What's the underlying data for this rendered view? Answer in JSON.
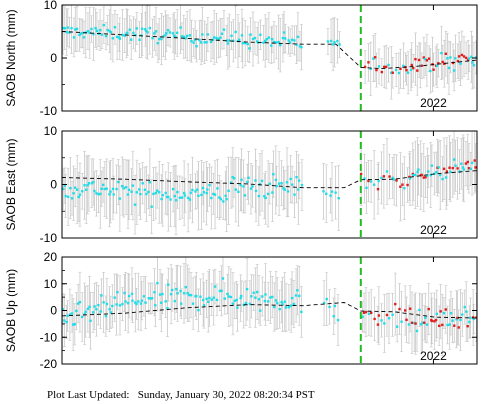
{
  "footer": {
    "label": "Plot Last Updated:",
    "timestamp": "Sunday, January 30, 2022 08:20:34 PST"
  },
  "colors": {
    "early_points": "#22dde6",
    "recent_points": "#e02020",
    "error_bars": "#c8c8c8",
    "model_line": "#000000",
    "event_line": "#22bb22"
  },
  "chart_data": [
    {
      "type": "scatter",
      "ylabel": "SAOB North (mm)",
      "ylim": [
        -10,
        10
      ],
      "yticks": [
        -10,
        0,
        10
      ],
      "x_tick_labels": [
        "2022"
      ],
      "grid": false,
      "error_bar_halfwidth": 4,
      "event_line_x": 0.72,
      "model_line": [
        [
          0.0,
          5.0
        ],
        [
          0.12,
          4.5
        ],
        [
          0.28,
          3.8
        ],
        [
          0.45,
          3.0
        ],
        [
          0.58,
          2.6
        ],
        [
          0.66,
          2.6
        ],
        [
          0.72,
          -1.8
        ],
        [
          0.77,
          -2.0
        ],
        [
          0.85,
          -1.6
        ],
        [
          0.95,
          -0.8
        ],
        [
          1.0,
          -0.4
        ]
      ],
      "segments": [
        {
          "x_range": [
            0.0,
            0.13
          ],
          "center": [
            5.0,
            4.7
          ],
          "spread": 0.9,
          "count": 30,
          "color": "early"
        },
        {
          "x_range": [
            0.13,
            0.3
          ],
          "center": [
            4.7,
            4.1
          ],
          "spread": 1.0,
          "count": 38,
          "color": "early"
        },
        {
          "x_range": [
            0.3,
            0.58
          ],
          "center": [
            4.1,
            2.8
          ],
          "spread": 1.1,
          "count": 60,
          "color": "early"
        },
        {
          "x_range": [
            0.64,
            0.67
          ],
          "center": [
            3.0,
            2.8
          ],
          "spread": 0.5,
          "count": 6,
          "color": "early"
        },
        {
          "x_range": [
            0.73,
            0.83
          ],
          "center": [
            -1.6,
            -1.7
          ],
          "spread": 1.2,
          "count": 18,
          "color": "recent"
        },
        {
          "x_range": [
            0.83,
            1.0
          ],
          "center": [
            -1.6,
            -0.3
          ],
          "spread": 1.2,
          "count": 42,
          "color": "recent"
        }
      ]
    },
    {
      "type": "scatter",
      "ylabel": "SAOB East (mm)",
      "ylim": [
        -10,
        10
      ],
      "yticks": [
        -10,
        0,
        10
      ],
      "x_tick_labels": [
        "2022"
      ],
      "grid": false,
      "error_bar_halfwidth": 5,
      "event_line_x": 0.72,
      "model_line": [
        [
          0.0,
          1.3
        ],
        [
          0.15,
          1.0
        ],
        [
          0.3,
          0.5
        ],
        [
          0.45,
          0.1
        ],
        [
          0.58,
          -0.6
        ],
        [
          0.68,
          -0.6
        ],
        [
          0.72,
          0.9
        ],
        [
          0.8,
          1.0
        ],
        [
          0.9,
          2.0
        ],
        [
          1.0,
          2.6
        ]
      ],
      "segments": [
        {
          "x_range": [
            0.0,
            0.12
          ],
          "center": [
            -0.5,
            -1.0
          ],
          "spread": 1.4,
          "count": 28,
          "color": "early"
        },
        {
          "x_range": [
            0.12,
            0.4
          ],
          "center": [
            -1.5,
            -1.8
          ],
          "spread": 1.4,
          "count": 62,
          "color": "early"
        },
        {
          "x_range": [
            0.4,
            0.58
          ],
          "center": [
            -0.5,
            -0.4
          ],
          "spread": 1.6,
          "count": 40,
          "color": "early"
        },
        {
          "x_range": [
            0.63,
            0.67
          ],
          "center": [
            -1.5,
            -1.5
          ],
          "spread": 1.0,
          "count": 6,
          "color": "early"
        },
        {
          "x_range": [
            0.72,
            0.83
          ],
          "center": [
            0.2,
            0.9
          ],
          "spread": 1.4,
          "count": 18,
          "color": "recent"
        },
        {
          "x_range": [
            0.83,
            1.0
          ],
          "center": [
            1.2,
            3.8
          ],
          "spread": 1.1,
          "count": 42,
          "color": "recent"
        }
      ]
    },
    {
      "type": "scatter",
      "ylabel": "SAOB Up (mm)",
      "ylim": [
        -20,
        20
      ],
      "yticks": [
        -20,
        -10,
        0,
        10,
        20
      ],
      "x_tick_labels": [
        "2022"
      ],
      "grid": false,
      "error_bar_halfwidth": 9,
      "event_line_x": 0.72,
      "model_line": [
        [
          0.0,
          -2.0
        ],
        [
          0.15,
          -1.0
        ],
        [
          0.3,
          1.0
        ],
        [
          0.45,
          2.2
        ],
        [
          0.58,
          1.8
        ],
        [
          0.68,
          3.0
        ],
        [
          0.72,
          -0.2
        ],
        [
          0.8,
          -0.5
        ],
        [
          0.9,
          -2.5
        ],
        [
          1.0,
          -2.8
        ]
      ],
      "segments": [
        {
          "x_range": [
            0.0,
            0.12
          ],
          "center": [
            -3.0,
            1.0
          ],
          "spread": 3.2,
          "count": 28,
          "color": "early"
        },
        {
          "x_range": [
            0.12,
            0.4
          ],
          "center": [
            3.0,
            6.0
          ],
          "spread": 3.5,
          "count": 62,
          "color": "early"
        },
        {
          "x_range": [
            0.4,
            0.58
          ],
          "center": [
            5.0,
            4.0
          ],
          "spread": 3.5,
          "count": 40,
          "color": "early"
        },
        {
          "x_range": [
            0.63,
            0.67
          ],
          "center": [
            1.0,
            -3.0
          ],
          "spread": 3.0,
          "count": 6,
          "color": "early"
        },
        {
          "x_range": [
            0.72,
            0.83
          ],
          "center": [
            -1.0,
            -3.0
          ],
          "spread": 3.5,
          "count": 18,
          "color": "recent"
        },
        {
          "x_range": [
            0.83,
            1.0
          ],
          "center": [
            -4.0,
            -3.0
          ],
          "spread": 3.0,
          "count": 42,
          "color": "recent"
        }
      ]
    }
  ]
}
